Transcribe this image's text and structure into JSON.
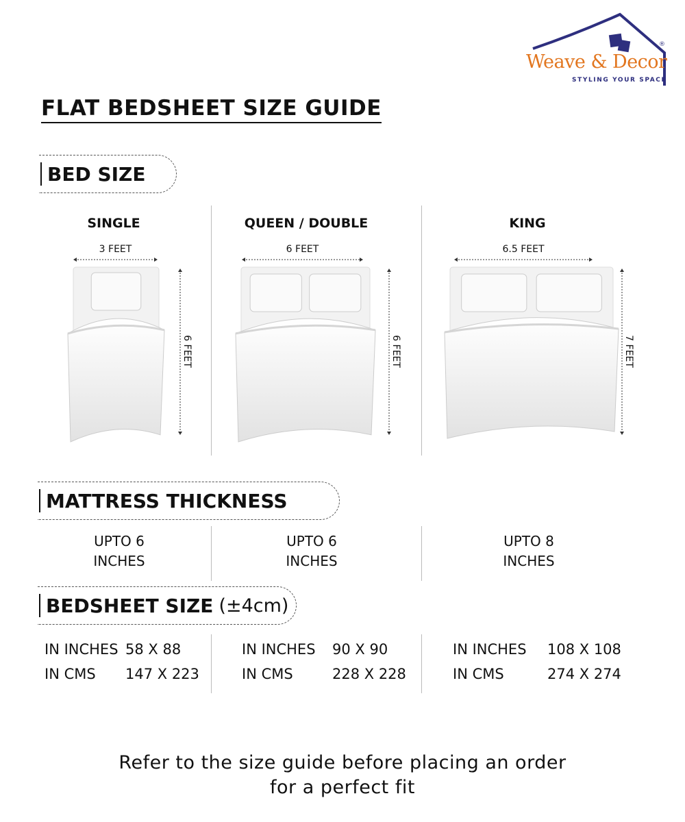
{
  "brand": {
    "name": "Weave & Decor",
    "tagline": "STYLING YOUR SPACE",
    "colors": {
      "navy": "#2e2f7f",
      "orange": "#e2761f"
    }
  },
  "title": "FLAT BEDSHEET SIZE GUIDE",
  "sections": {
    "bed_size": "BED SIZE",
    "mattress": "MATTRESS THICKNESS",
    "bedsheet": "BEDSHEET SIZE",
    "bedsheet_tolerance": "(±4cm)"
  },
  "columns": [
    {
      "name": "SINGLE",
      "width": "3 FEET",
      "length": "6 FEET",
      "thickness_line1": "UPTO 6",
      "thickness_line2": "INCHES",
      "inches_label": "IN INCHES",
      "inches": "58 X 88",
      "cms_label": "IN CMS",
      "cms": "147 X 223"
    },
    {
      "name": "QUEEN / DOUBLE",
      "width": "6 FEET",
      "length": "6 FEET",
      "thickness_line1": "UPTO 6",
      "thickness_line2": "INCHES",
      "inches_label": "IN INCHES",
      "inches": "90 X 90",
      "cms_label": "IN CMS",
      "cms": "228 X 228"
    },
    {
      "name": "KING",
      "width": "6.5 FEET",
      "length": "7 FEET",
      "thickness_line1": "UPTO 8",
      "thickness_line2": "INCHES",
      "inches_label": "IN INCHES",
      "inches": "108 X 108",
      "cms_label": "IN CMS",
      "cms": "274 X 274"
    }
  ],
  "footer": {
    "line1": "Refer to the size guide before placing an order",
    "line2": "for a perfect fit"
  }
}
